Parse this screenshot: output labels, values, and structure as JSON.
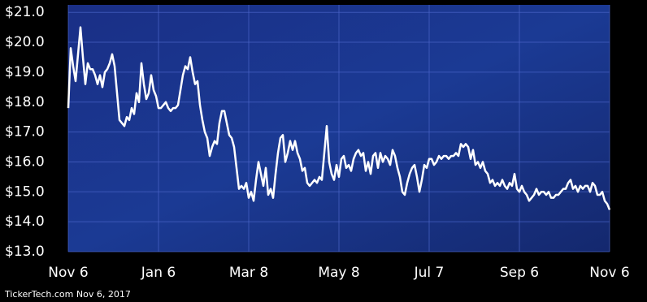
{
  "chart_data": {
    "type": "line",
    "footer": "TickerTech.com  Nov 6, 2017",
    "xlim": [
      0,
      12
    ],
    "xticks": [
      {
        "value": 0,
        "label": "Nov 6"
      },
      {
        "value": 2,
        "label": "Jan 6"
      },
      {
        "value": 4,
        "label": "Mar 8"
      },
      {
        "value": 6,
        "label": "May 8"
      },
      {
        "value": 8,
        "label": "Jul 7"
      },
      {
        "value": 10,
        "label": "Sep 6"
      },
      {
        "value": 12,
        "label": "Nov 6"
      }
    ],
    "ylim": [
      13,
      21.25
    ],
    "yticks": [
      {
        "value": 13,
        "label": "$13.0"
      },
      {
        "value": 14,
        "label": "$14.0"
      },
      {
        "value": 15,
        "label": "$15.0"
      },
      {
        "value": 16,
        "label": "$16.0"
      },
      {
        "value": 17,
        "label": "$17.0"
      },
      {
        "value": 18,
        "label": "$18.0"
      },
      {
        "value": 19,
        "label": "$19.0"
      },
      {
        "value": 20,
        "label": "$20.0"
      },
      {
        "value": 21,
        "label": "$21.0"
      }
    ],
    "grid": true,
    "color": "#ffffff",
    "values": [
      17.8,
      19.8,
      19.2,
      18.7,
      19.6,
      20.5,
      19.5,
      18.6,
      19.3,
      19.1,
      19.1,
      18.9,
      18.6,
      18.9,
      18.5,
      19.0,
      19.1,
      19.3,
      19.6,
      19.2,
      18.3,
      17.4,
      17.3,
      17.2,
      17.5,
      17.4,
      17.8,
      17.6,
      18.3,
      18.0,
      19.3,
      18.6,
      18.1,
      18.3,
      18.9,
      18.4,
      18.2,
      17.8,
      17.8,
      17.9,
      18.0,
      17.8,
      17.7,
      17.8,
      17.8,
      17.9,
      18.4,
      18.9,
      19.2,
      19.1,
      19.5,
      19.0,
      18.6,
      18.7,
      17.9,
      17.4,
      17.0,
      16.8,
      16.2,
      16.5,
      16.7,
      16.6,
      17.3,
      17.7,
      17.7,
      17.3,
      16.9,
      16.8,
      16.5,
      15.8,
      15.1,
      15.2,
      15.1,
      15.3,
      14.8,
      15.0,
      14.7,
      15.4,
      16.0,
      15.6,
      15.2,
      15.8,
      14.9,
      15.1,
      14.8,
      15.6,
      16.3,
      16.8,
      16.9,
      16.0,
      16.3,
      16.7,
      16.4,
      16.7,
      16.3,
      16.1,
      15.7,
      15.8,
      15.3,
      15.2,
      15.3,
      15.4,
      15.3,
      15.5,
      15.4,
      16.3,
      17.2,
      16.0,
      15.6,
      15.4,
      15.9,
      15.5,
      16.1,
      16.2,
      15.8,
      15.9,
      15.7,
      16.1,
      16.3,
      16.4,
      16.2,
      16.3,
      15.7,
      16.0,
      15.6,
      16.2,
      16.3,
      15.8,
      16.3,
      16.0,
      16.2,
      16.1,
      15.9,
      16.4,
      16.2,
      15.8,
      15.5,
      15.0,
      14.9,
      15.3,
      15.6,
      15.8,
      15.9,
      15.5,
      15.0,
      15.4,
      15.9,
      15.8,
      16.1,
      16.1,
      15.9,
      16.0,
      16.2,
      16.1,
      16.2,
      16.2,
      16.1,
      16.2,
      16.2,
      16.3,
      16.2,
      16.6,
      16.5,
      16.6,
      16.5,
      16.1,
      16.4,
      15.9,
      16.0,
      15.8,
      16.0,
      15.7,
      15.6,
      15.3,
      15.4,
      15.2,
      15.3,
      15.2,
      15.4,
      15.2,
      15.1,
      15.3,
      15.2,
      15.6,
      15.1,
      15.0,
      15.2,
      15.0,
      14.9,
      14.7,
      14.8,
      14.9,
      15.1,
      14.9,
      15.0,
      15.0,
      14.9,
      15.0,
      14.8,
      14.8,
      14.9,
      14.9,
      15.0,
      15.1,
      15.1,
      15.3,
      15.4,
      15.1,
      15.2,
      15.0,
      15.2,
      15.1,
      15.2,
      15.2,
      15.0,
      15.3,
      15.2,
      14.9,
      14.9,
      15.0,
      14.7,
      14.6,
      14.4
    ]
  }
}
